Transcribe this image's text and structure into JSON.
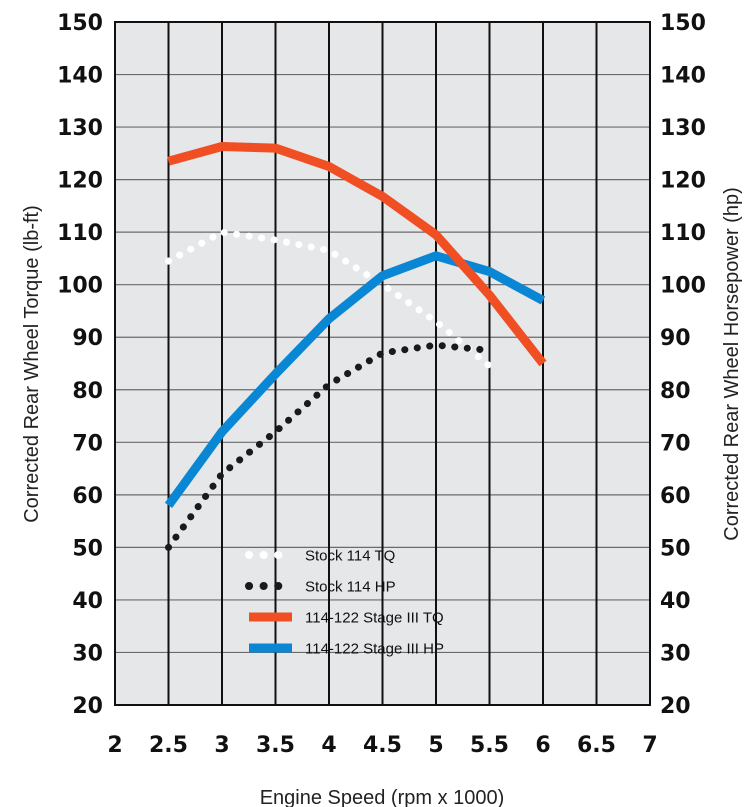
{
  "chart_data": {
    "type": "line",
    "title": "",
    "xlabel": "Engine Speed (rpm x 1000)",
    "ylabel_left": "Corrected Rear Wheel Torque (lb-ft)",
    "ylabel_right": "Corrected Rear Wheel Horsepower (hp)",
    "xlim": [
      2,
      7
    ],
    "ylim": [
      20,
      150
    ],
    "x_ticks": [
      "2",
      "2.5",
      "3",
      "3.5",
      "4",
      "4.5",
      "5",
      "5.5",
      "6",
      "6.5",
      "7"
    ],
    "y_ticks": [
      "150",
      "140",
      "130",
      "120",
      "110",
      "100",
      "90",
      "80",
      "70",
      "60",
      "50",
      "40",
      "30",
      "20"
    ],
    "grid": true,
    "legend_position": "bottom-center",
    "series": [
      {
        "name": "Stock 114 TQ",
        "style": "dotted",
        "color": "#ffffff",
        "x": [
          2.5,
          3,
          3.5,
          4,
          4.5,
          5,
          5.5
        ],
        "y": [
          104.5,
          110,
          108.5,
          106.5,
          100,
          93,
          84.5
        ]
      },
      {
        "name": "Stock 114 HP",
        "style": "dotted",
        "color": "#1a1a1a",
        "x": [
          2.5,
          3,
          3.5,
          4,
          4.5,
          5,
          5.5
        ],
        "y": [
          50,
          64,
          72,
          81,
          87,
          88.5,
          87.5
        ]
      },
      {
        "name": "114-122 Stage III TQ",
        "style": "solid",
        "color": "#f04e23",
        "x": [
          2.5,
          3,
          3.5,
          4,
          4.5,
          5,
          5.5,
          6
        ],
        "y": [
          123.5,
          126.3,
          126,
          122.5,
          116.8,
          109.5,
          98,
          85
        ]
      },
      {
        "name": "114-122 Stage III HP",
        "style": "solid",
        "color": "#0a87d4",
        "x": [
          2.5,
          3,
          3.5,
          4,
          4.5,
          5,
          5.5,
          6
        ],
        "y": [
          58,
          72,
          83,
          93.5,
          101.7,
          105.5,
          102.5,
          97
        ]
      }
    ]
  },
  "colors": {
    "plot_background": "#e6e7e8",
    "grid_vertical": "#111111",
    "grid_horizontal": "#6b6b6b"
  }
}
